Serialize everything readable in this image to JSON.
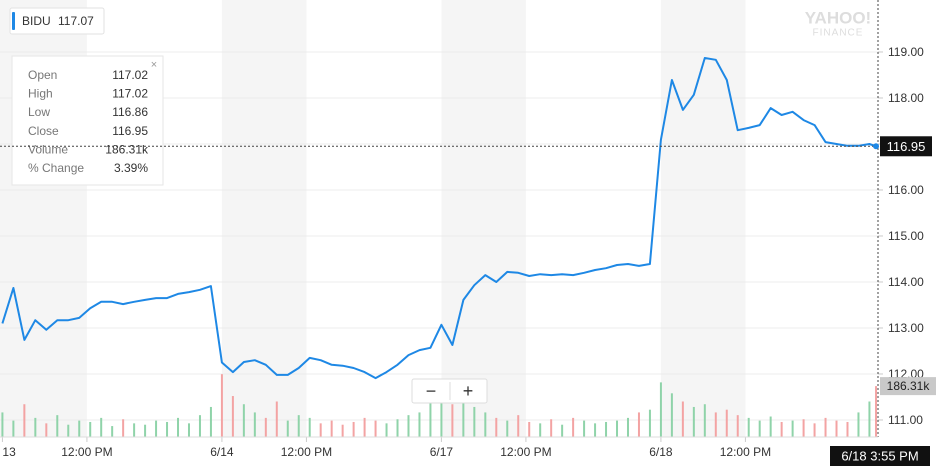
{
  "chart_data": {
    "type": "line",
    "ticker": "BIDU",
    "quote": 117.07,
    "watermark": [
      "YAHOO!",
      "FINANCE"
    ],
    "zoom_buttons": [
      "−",
      "+"
    ],
    "series": [
      {
        "name": "BIDU",
        "color": "#1e88e5",
        "x": [
          0,
          0.05,
          0.1,
          0.15,
          0.2,
          0.25,
          0.3,
          0.35,
          0.4,
          0.45,
          0.5,
          0.55,
          0.6,
          0.65,
          0.7,
          0.75,
          0.8,
          0.85,
          0.9,
          0.95,
          1,
          1.05,
          1.1,
          1.15,
          1.2,
          1.25,
          1.3,
          1.35,
          1.4,
          1.45,
          1.5,
          1.55,
          1.6,
          1.65,
          1.7,
          1.75,
          1.8,
          1.85,
          1.9,
          1.95,
          2,
          2.05,
          2.1,
          2.15,
          2.2,
          2.25,
          2.3,
          2.35,
          2.4,
          2.45,
          2.5,
          2.55,
          2.6,
          2.65,
          2.7,
          2.75,
          2.8,
          2.85,
          2.9,
          2.95,
          3,
          3.05,
          3.1,
          3.15,
          3.2,
          3.25,
          3.3,
          3.35,
          3.4,
          3.45,
          3.5,
          3.55,
          3.6,
          3.65,
          3.7,
          3.75,
          3.8,
          3.85,
          3.9,
          3.95,
          3.98
        ],
        "values": [
          113.1,
          113.87,
          112.74,
          113.17,
          112.96,
          113.17,
          113.17,
          113.22,
          113.43,
          113.57,
          113.57,
          113.52,
          113.57,
          113.61,
          113.65,
          113.65,
          113.74,
          113.78,
          113.83,
          113.91,
          112.25,
          112.04,
          112.26,
          112.3,
          112.2,
          111.98,
          111.98,
          112.13,
          112.35,
          112.3,
          112.2,
          112.18,
          112.13,
          112.04,
          111.91,
          112.04,
          112.2,
          112.41,
          112.52,
          112.57,
          113.07,
          112.63,
          113.61,
          113.93,
          114.15,
          114.0,
          114.22,
          114.2,
          114.13,
          114.17,
          114.15,
          114.17,
          114.15,
          114.2,
          114.26,
          114.3,
          114.37,
          114.39,
          114.35,
          114.39,
          117.09,
          118.39,
          117.74,
          118.07,
          118.87,
          118.83,
          118.39,
          117.3,
          117.35,
          117.41,
          117.78,
          117.63,
          117.7,
          117.52,
          117.41,
          117.04,
          117.0,
          116.96,
          116.96,
          117.0,
          116.95
        ]
      }
    ],
    "volume": {
      "up_color": "#8fd3a9",
      "down_color": "#f3a3a3",
      "values": [
        90000,
        60000,
        120000,
        70000,
        50000,
        80000,
        45000,
        60000,
        55000,
        70000,
        40000,
        65000,
        50000,
        45000,
        60000,
        55000,
        70000,
        50000,
        80000,
        110000,
        230000,
        150000,
        120000,
        90000,
        70000,
        130000,
        60000,
        80000,
        70000,
        50000,
        60000,
        45000,
        55000,
        70000,
        60000,
        50000,
        65000,
        80000,
        90000,
        140000,
        180000,
        120000,
        150000,
        110000,
        90000,
        70000,
        60000,
        80000,
        55000,
        50000,
        65000,
        45000,
        70000,
        60000,
        50000,
        55000,
        60000,
        70000,
        90000,
        100000,
        200000,
        160000,
        130000,
        110000,
        120000,
        90000,
        100000,
        80000,
        70000,
        60000,
        75000,
        55000,
        60000,
        65000,
        50000,
        70000,
        60000,
        55000,
        90000,
        130000,
        186310
      ]
    },
    "last_price": 116.95,
    "crosshair_time": "6/18 3:55 PM",
    "tooltip": [
      {
        "name": "Open",
        "value": 117.02
      },
      {
        "name": "High",
        "value": 117.02
      },
      {
        "name": "Low",
        "value": 116.86
      },
      {
        "name": "Close",
        "value": 116.95
      },
      {
        "name": "Volume",
        "value": 186310,
        "label": "186.31k"
      },
      {
        "name": "% Change",
        "value": 3.39,
        "label": "3.39%"
      }
    ],
    "xlim": [
      -0.011,
      3.989
    ],
    "xticks": [
      {
        "value": 0,
        "label": "13"
      },
      {
        "value": 0.385,
        "label": "12:00 PM"
      },
      {
        "value": 1,
        "label": "6/14"
      },
      {
        "value": 1.385,
        "label": "12:00 PM"
      },
      {
        "value": 2,
        "label": "6/17"
      },
      {
        "value": 2.385,
        "label": "12:00 PM"
      },
      {
        "value": 3,
        "label": "6/18"
      },
      {
        "value": 3.385,
        "label": "12:00 PM"
      }
    ],
    "ylim": [
      110.63,
      120.13
    ],
    "yticks": [
      {
        "value": 111,
        "label": "111.00"
      },
      {
        "value": 112,
        "label": "112.00"
      },
      {
        "value": 113,
        "label": "113.00"
      },
      {
        "value": 114,
        "label": "114.00"
      },
      {
        "value": 115,
        "label": "115.00"
      },
      {
        "value": 116,
        "label": "116.00"
      },
      {
        "value": 117,
        "label": "117.00"
      },
      {
        "value": 118,
        "label": "118.00"
      },
      {
        "value": 119,
        "label": "119.00"
      }
    ],
    "y2lim": [
      0,
      1600000
    ],
    "grid": true
  }
}
